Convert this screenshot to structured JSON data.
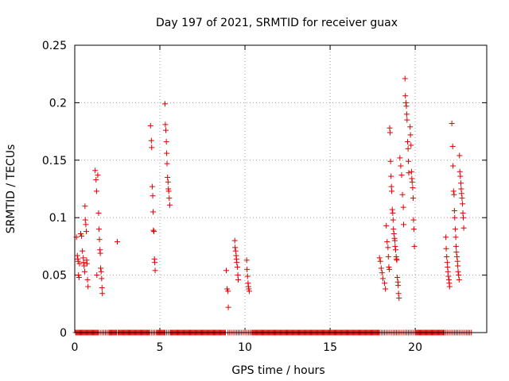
{
  "chart_data": {
    "type": "scatter",
    "title": "Day 197 of 2021, SRMTID for receiver guax",
    "xlabel": "GPS time / hours",
    "ylabel": "SRMTID / TECUs",
    "xlim": [
      0,
      24.2
    ],
    "ylim": [
      0,
      0.25
    ],
    "xticks": [
      0,
      5,
      10,
      15,
      20
    ],
    "xtick_labels": [
      "0",
      "5",
      "10",
      "15",
      "20"
    ],
    "yticks": [
      0,
      0.05,
      0.1,
      0.15,
      0.2,
      0.25
    ],
    "ytick_labels": [
      "0",
      "0.05",
      "0.1",
      "0.15",
      "0.2",
      "0.25"
    ],
    "grid": true,
    "marker": "+",
    "series": [
      {
        "name": "SRMTID",
        "color": "#dd0000",
        "points": [
          [
            0.1,
            0.083
          ],
          [
            0.15,
            0.067
          ],
          [
            0.18,
            0.064
          ],
          [
            0.2,
            0.062
          ],
          [
            0.22,
            0.05
          ],
          [
            0.25,
            0.048
          ],
          [
            0.28,
            0.06
          ],
          [
            0.35,
            0.086
          ],
          [
            0.4,
            0.084
          ],
          [
            0.45,
            0.071
          ],
          [
            0.5,
            0.065
          ],
          [
            0.52,
            0.061
          ],
          [
            0.55,
            0.058
          ],
          [
            0.58,
            0.053
          ],
          [
            0.6,
            0.11
          ],
          [
            0.62,
            0.098
          ],
          [
            0.65,
            0.094
          ],
          [
            0.68,
            0.088
          ],
          [
            0.7,
            0.063
          ],
          [
            0.72,
            0.06
          ],
          [
            0.75,
            0.046
          ],
          [
            0.78,
            0.04
          ],
          [
            1.2,
            0.141
          ],
          [
            1.25,
            0.133
          ],
          [
            1.28,
            0.123
          ],
          [
            1.3,
            0.05
          ],
          [
            1.35,
            0.137
          ],
          [
            1.4,
            0.104
          ],
          [
            1.42,
            0.09
          ],
          [
            1.45,
            0.081
          ],
          [
            1.48,
            0.072
          ],
          [
            1.5,
            0.069
          ],
          [
            1.52,
            0.056
          ],
          [
            1.55,
            0.053
          ],
          [
            1.58,
            0.047
          ],
          [
            1.6,
            0.039
          ],
          [
            1.62,
            0.034
          ],
          [
            2.5,
            0.079
          ],
          [
            4.45,
            0.18
          ],
          [
            4.5,
            0.167
          ],
          [
            4.52,
            0.161
          ],
          [
            4.55,
            0.127
          ],
          [
            4.58,
            0.119
          ],
          [
            4.6,
            0.105
          ],
          [
            4.62,
            0.089
          ],
          [
            4.65,
            0.088
          ],
          [
            4.68,
            0.064
          ],
          [
            4.7,
            0.061
          ],
          [
            4.72,
            0.054
          ],
          [
            5.3,
            0.199
          ],
          [
            5.32,
            0.181
          ],
          [
            5.35,
            0.176
          ],
          [
            5.38,
            0.166
          ],
          [
            5.4,
            0.156
          ],
          [
            5.42,
            0.147
          ],
          [
            5.45,
            0.135
          ],
          [
            5.48,
            0.131
          ],
          [
            5.5,
            0.125
          ],
          [
            5.52,
            0.123
          ],
          [
            5.55,
            0.117
          ],
          [
            5.58,
            0.111
          ],
          [
            8.9,
            0.054
          ],
          [
            8.95,
            0.038
          ],
          [
            9.0,
            0.036
          ],
          [
            9.02,
            0.022
          ],
          [
            9.4,
            0.08
          ],
          [
            9.42,
            0.074
          ],
          [
            9.45,
            0.071
          ],
          [
            9.48,
            0.067
          ],
          [
            9.5,
            0.064
          ],
          [
            9.52,
            0.061
          ],
          [
            9.55,
            0.057
          ],
          [
            9.58,
            0.05
          ],
          [
            9.6,
            0.046
          ],
          [
            10.1,
            0.063
          ],
          [
            10.12,
            0.055
          ],
          [
            10.15,
            0.049
          ],
          [
            10.18,
            0.043
          ],
          [
            10.2,
            0.04
          ],
          [
            10.22,
            0.038
          ],
          [
            10.25,
            0.036
          ],
          [
            17.9,
            0.065
          ],
          [
            17.95,
            0.062
          ],
          [
            18.0,
            0.056
          ],
          [
            18.05,
            0.052
          ],
          [
            18.1,
            0.047
          ],
          [
            18.2,
            0.043
          ],
          [
            18.25,
            0.038
          ],
          [
            18.3,
            0.093
          ],
          [
            18.35,
            0.079
          ],
          [
            18.4,
            0.074
          ],
          [
            18.42,
            0.066
          ],
          [
            18.45,
            0.057
          ],
          [
            18.48,
            0.055
          ],
          [
            18.5,
            0.178
          ],
          [
            18.52,
            0.174
          ],
          [
            18.55,
            0.149
          ],
          [
            18.58,
            0.136
          ],
          [
            18.6,
            0.127
          ],
          [
            18.62,
            0.123
          ],
          [
            18.65,
            0.107
          ],
          [
            18.68,
            0.104
          ],
          [
            18.7,
            0.098
          ],
          [
            18.72,
            0.09
          ],
          [
            18.75,
            0.086
          ],
          [
            18.78,
            0.082
          ],
          [
            18.8,
            0.08
          ],
          [
            18.82,
            0.075
          ],
          [
            18.85,
            0.072
          ],
          [
            18.88,
            0.066
          ],
          [
            18.9,
            0.064
          ],
          [
            18.92,
            0.063
          ],
          [
            18.95,
            0.048
          ],
          [
            18.98,
            0.044
          ],
          [
            19.0,
            0.041
          ],
          [
            19.02,
            0.034
          ],
          [
            19.05,
            0.03
          ],
          [
            19.1,
            0.152
          ],
          [
            19.15,
            0.145
          ],
          [
            19.2,
            0.137
          ],
          [
            19.25,
            0.12
          ],
          [
            19.3,
            0.109
          ],
          [
            19.32,
            0.094
          ],
          [
            19.4,
            0.221
          ],
          [
            19.42,
            0.206
          ],
          [
            19.45,
            0.2
          ],
          [
            19.48,
            0.197
          ],
          [
            19.5,
            0.19
          ],
          [
            19.52,
            0.185
          ],
          [
            19.55,
            0.166
          ],
          [
            19.58,
            0.16
          ],
          [
            19.6,
            0.149
          ],
          [
            19.62,
            0.139
          ],
          [
            19.7,
            0.179
          ],
          [
            19.72,
            0.172
          ],
          [
            19.75,
            0.163
          ],
          [
            19.78,
            0.14
          ],
          [
            19.8,
            0.134
          ],
          [
            19.82,
            0.131
          ],
          [
            19.85,
            0.126
          ],
          [
            19.88,
            0.117
          ],
          [
            19.9,
            0.098
          ],
          [
            19.92,
            0.09
          ],
          [
            19.95,
            0.075
          ],
          [
            21.8,
            0.083
          ],
          [
            21.82,
            0.073
          ],
          [
            21.85,
            0.066
          ],
          [
            21.88,
            0.061
          ],
          [
            21.9,
            0.057
          ],
          [
            21.92,
            0.053
          ],
          [
            21.95,
            0.049
          ],
          [
            21.98,
            0.046
          ],
          [
            22.0,
            0.043
          ],
          [
            22.02,
            0.04
          ],
          [
            22.15,
            0.182
          ],
          [
            22.2,
            0.162
          ],
          [
            22.22,
            0.145
          ],
          [
            22.25,
            0.123
          ],
          [
            22.28,
            0.12
          ],
          [
            22.3,
            0.106
          ],
          [
            22.32,
            0.1
          ],
          [
            22.35,
            0.09
          ],
          [
            22.38,
            0.083
          ],
          [
            22.4,
            0.075
          ],
          [
            22.42,
            0.07
          ],
          [
            22.45,
            0.066
          ],
          [
            22.48,
            0.062
          ],
          [
            22.5,
            0.058
          ],
          [
            22.52,
            0.053
          ],
          [
            22.55,
            0.05
          ],
          [
            22.58,
            0.046
          ],
          [
            22.6,
            0.154
          ],
          [
            22.62,
            0.14
          ],
          [
            22.65,
            0.136
          ],
          [
            22.68,
            0.13
          ],
          [
            22.7,
            0.125
          ],
          [
            22.72,
            0.121
          ],
          [
            22.75,
            0.117
          ],
          [
            22.78,
            0.112
          ],
          [
            22.8,
            0.104
          ],
          [
            22.82,
            0.1
          ],
          [
            22.85,
            0.091
          ]
        ]
      }
    ],
    "zero_markers": [
      0.05,
      0.1,
      0.15,
      0.2,
      0.25,
      0.3,
      0.35,
      0.4,
      0.45,
      0.5,
      0.55,
      0.6,
      0.65,
      0.7,
      0.75,
      0.8,
      0.85,
      0.9,
      0.95,
      1.0,
      1.05,
      1.1,
      1.15,
      1.2,
      1.25,
      1.3,
      1.35,
      1.4,
      1.5,
      1.6,
      1.7,
      1.8,
      1.9,
      2.0,
      2.05,
      2.1,
      2.15,
      2.2,
      2.25,
      2.3,
      2.35,
      2.4,
      2.45,
      2.55,
      2.6,
      2.65,
      2.7,
      2.75,
      2.8,
      2.85,
      2.9,
      2.95,
      3.0,
      3.05,
      3.1,
      3.15,
      3.2,
      3.25,
      3.3,
      3.35,
      3.4,
      3.45,
      3.5,
      3.55,
      3.6,
      3.65,
      3.7,
      3.75,
      3.8,
      3.85,
      3.9,
      3.95,
      4.0,
      4.05,
      4.1,
      4.15,
      4.2,
      4.25,
      4.3,
      4.35,
      4.4,
      4.5,
      4.6,
      4.7,
      4.8,
      4.85,
      4.9,
      4.95,
      5.0,
      5.05,
      5.1,
      5.15,
      5.2,
      5.25,
      5.3,
      5.4,
      5.5,
      5.6,
      5.65,
      5.7,
      5.75,
      5.8,
      5.85,
      5.9,
      5.95,
      6.0,
      6.05,
      6.1,
      6.15,
      6.2,
      6.25,
      6.3,
      6.35,
      6.4,
      6.45,
      6.5,
      6.55,
      6.6,
      6.65,
      6.7,
      6.75,
      6.8,
      6.85,
      6.9,
      6.95,
      7.0,
      7.05,
      7.1,
      7.15,
      7.2,
      7.25,
      7.3,
      7.35,
      7.4,
      7.45,
      7.5,
      7.55,
      7.6,
      7.65,
      7.7,
      7.75,
      7.8,
      7.85,
      7.9,
      7.95,
      8.0,
      8.05,
      8.1,
      8.15,
      8.2,
      8.25,
      8.3,
      8.35,
      8.4,
      8.45,
      8.5,
      8.55,
      8.6,
      8.65,
      8.7,
      8.75,
      8.8,
      8.85,
      9.0,
      9.1,
      9.2,
      9.3,
      9.4,
      9.5,
      9.6,
      9.7,
      9.8,
      9.9,
      10.0,
      10.1,
      10.2,
      10.3,
      10.4,
      10.45,
      10.5,
      10.55,
      10.6,
      10.65,
      10.7,
      10.75,
      10.8,
      10.85,
      10.9,
      10.95,
      11.0,
      11.05,
      11.1,
      11.15,
      11.2,
      11.25,
      11.3,
      11.35,
      11.4,
      11.45,
      11.5,
      11.55,
      11.6,
      11.65,
      11.7,
      11.75,
      11.8,
      11.85,
      11.9,
      11.95,
      12.0,
      12.05,
      12.1,
      12.15,
      12.2,
      12.25,
      12.3,
      12.35,
      12.4,
      12.45,
      12.5,
      12.55,
      12.6,
      12.65,
      12.7,
      12.75,
      12.8,
      12.85,
      12.9,
      12.95,
      13.0,
      13.05,
      13.1,
      13.15,
      13.2,
      13.25,
      13.3,
      13.35,
      13.4,
      13.45,
      13.5,
      13.55,
      13.6,
      13.65,
      13.7,
      13.75,
      13.8,
      13.85,
      13.9,
      13.95,
      14.0,
      14.05,
      14.1,
      14.15,
      14.2,
      14.25,
      14.3,
      14.35,
      14.4,
      14.45,
      14.5,
      14.55,
      14.6,
      14.65,
      14.7,
      14.75,
      14.8,
      14.85,
      14.9,
      14.95,
      15.0,
      15.05,
      15.1,
      15.15,
      15.2,
      15.25,
      15.3,
      15.35,
      15.4,
      15.45,
      15.5,
      15.55,
      15.6,
      15.65,
      15.7,
      15.75,
      15.8,
      15.85,
      15.9,
      15.95,
      16.0,
      16.05,
      16.1,
      16.15,
      16.2,
      16.25,
      16.3,
      16.35,
      16.4,
      16.45,
      16.5,
      16.55,
      16.6,
      16.65,
      16.7,
      16.75,
      16.8,
      16.85,
      16.9,
      16.95,
      17.0,
      17.05,
      17.1,
      17.15,
      17.2,
      17.25,
      17.3,
      17.35,
      17.4,
      17.45,
      17.5,
      17.55,
      17.6,
      17.65,
      17.7,
      17.75,
      17.8,
      17.85,
      17.9,
      18.0,
      18.1,
      18.2,
      18.3,
      18.4,
      18.5,
      18.6,
      18.7,
      18.8,
      18.9,
      19.0,
      19.1,
      19.2,
      19.3,
      19.4,
      19.5,
      19.6,
      19.7,
      19.8,
      19.9,
      20.0,
      20.05,
      20.1,
      20.15,
      20.2,
      20.25,
      20.3,
      20.35,
      20.4,
      20.45,
      20.5,
      20.55,
      20.6,
      20.65,
      20.7,
      20.75,
      20.8,
      20.85,
      20.9,
      20.95,
      21.0,
      21.05,
      21.1,
      21.15,
      21.2,
      21.25,
      21.3,
      21.35,
      21.4,
      21.45,
      21.5,
      21.55,
      21.6,
      21.65,
      21.7,
      21.8,
      21.9,
      22.0,
      22.1,
      22.2,
      22.3,
      22.4,
      22.5,
      22.6,
      22.7,
      22.8,
      22.9,
      23.0,
      23.1,
      23.2,
      23.3
    ]
  }
}
